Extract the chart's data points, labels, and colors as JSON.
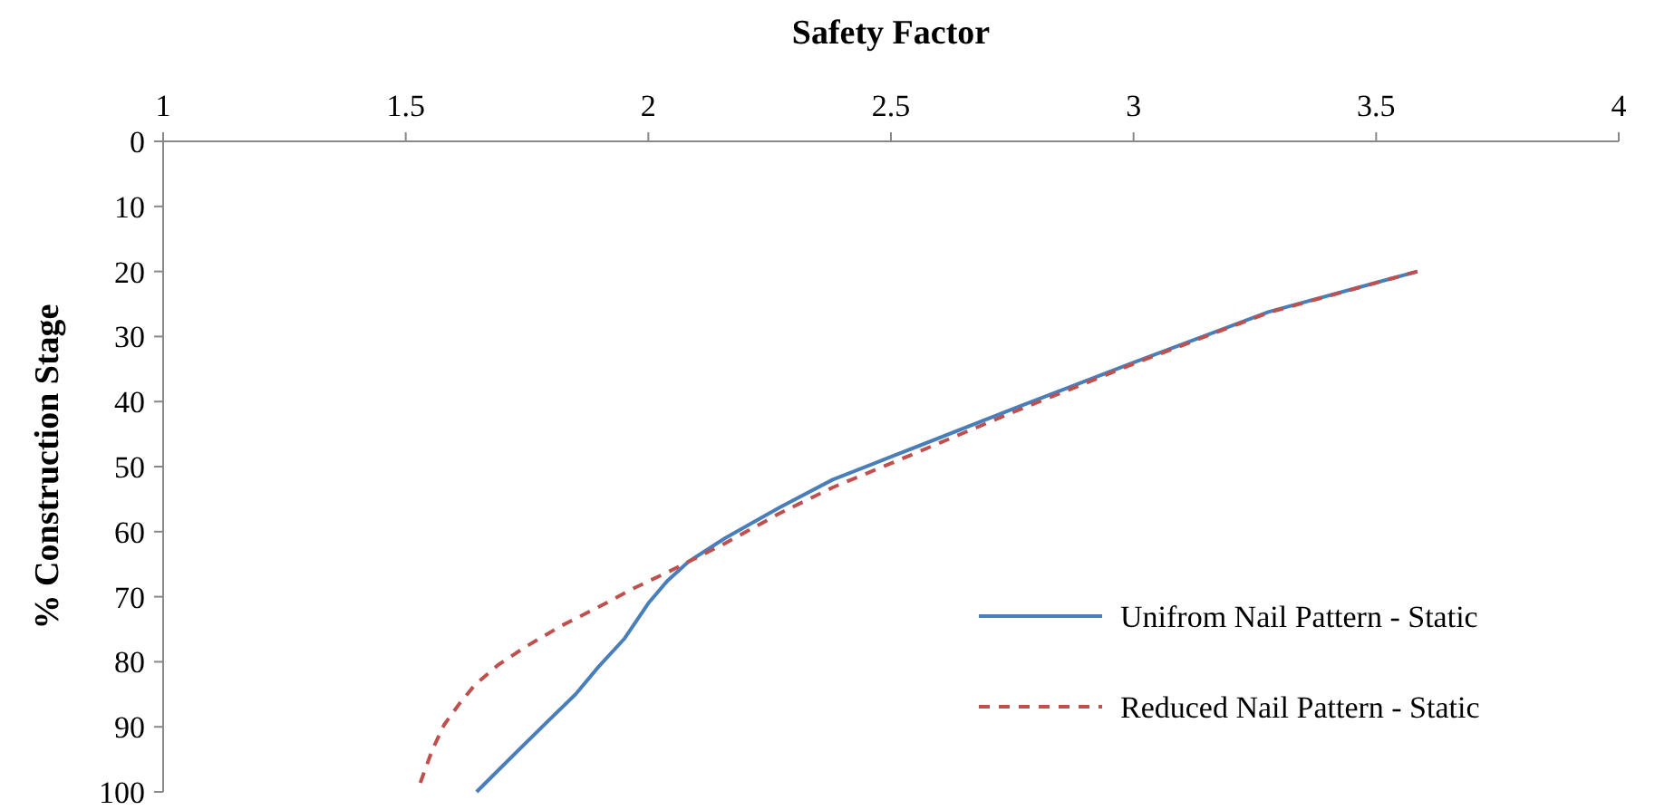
{
  "chart_data": {
    "type": "line",
    "xlabel": "Safety Factor",
    "ylabel": "% Construction Stage",
    "xlim": [
      1,
      4
    ],
    "xticks": [
      1,
      1.5,
      2,
      2.5,
      3,
      3.5,
      4
    ],
    "ylim": [
      100,
      0
    ],
    "yticks": [
      0,
      10,
      20,
      30,
      40,
      50,
      60,
      70,
      80,
      90,
      100
    ],
    "grid": false,
    "legend": "bottom right",
    "marker": "none",
    "series": [
      {
        "name": "Unifrom Nail Pattern - Static",
        "color": "#4a7ebb",
        "line_style": "solid",
        "x": [
          1.646,
          1.72,
          1.785,
          1.85,
          1.897,
          1.95,
          2.0,
          2.04,
          2.083,
          2.158,
          2.27,
          2.38,
          2.5,
          2.756,
          3.0,
          3.279,
          3.585
        ],
        "values": [
          100,
          94.5,
          89.7,
          85,
          80.8,
          76.5,
          71,
          67.5,
          64.6,
          61,
          56.3,
          52,
          48.5,
          41,
          34,
          26.2,
          20
        ]
      },
      {
        "name": "Reduced Nail Pattern - Static",
        "color": "#c0504d",
        "line_style": "dashed",
        "x": [
          1.53,
          1.555,
          1.579,
          1.61,
          1.642,
          1.69,
          1.747,
          1.82,
          1.897,
          1.97,
          2.046,
          2.158,
          2.27,
          2.38,
          2.5,
          2.756,
          3.0,
          3.279,
          3.585
        ],
        "values": [
          98.6,
          93.5,
          89.7,
          86.5,
          83.6,
          80.5,
          77.7,
          74.5,
          71.6,
          68.7,
          66,
          61.8,
          57.2,
          53.2,
          49.5,
          41.5,
          34.2,
          26.3,
          20
        ]
      }
    ]
  }
}
